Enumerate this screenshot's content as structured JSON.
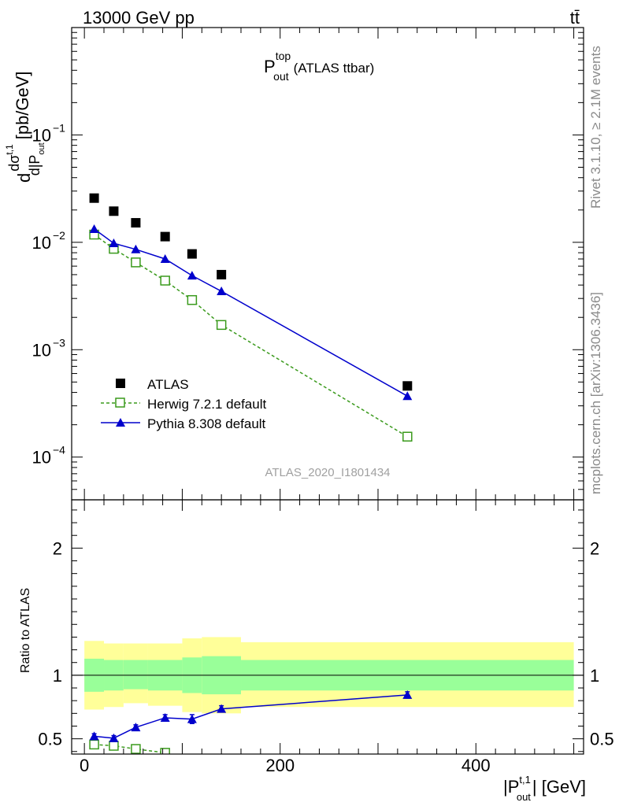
{
  "header": {
    "left": "13000 GeV pp",
    "right": "tt̄"
  },
  "side_text": {
    "rivet": "Rivet 3.1.10, ≥ 2.1M events",
    "mcplots": "mcplots.cern.ch [arXiv:1306.3436]"
  },
  "chart_data": [
    {
      "type": "scatter",
      "panel": "main",
      "title_main": "P",
      "title_sup": "top",
      "title_sub": "out",
      "title_rest": "(ATLAS ttbar)",
      "ylabel": "d dσ^{t,1}_{ttd} / d|P^{t,1}_{out}| [pb/GeV]",
      "ylabel_parts": {
        "d": "d",
        "dsigma": "dσ",
        "sup": "t,1",
        "sub": "out",
        "denom": "d|P",
        "unit": "[pb/GeV]"
      },
      "yscale": "log",
      "ylim": [
        4e-05,
        1.0
      ],
      "xlim": [
        -13,
        510
      ],
      "yticks": [
        {
          "value": 0.0001,
          "base": "10",
          "exp": "−4"
        },
        {
          "value": 0.001,
          "base": "10",
          "exp": "−3"
        },
        {
          "value": 0.01,
          "base": "10",
          "exp": "−2"
        },
        {
          "value": 0.1,
          "base": "10",
          "exp": "−1"
        }
      ],
      "watermark": "ATLAS_2020_I1801434",
      "legend_placement": "bottom-left",
      "series": [
        {
          "name": "ATLAS",
          "style": "data",
          "color": "#000000",
          "x": [
            10,
            30,
            52.5,
            82.5,
            110,
            140,
            330
          ],
          "y": [
            0.0258,
            0.0195,
            0.0152,
            0.0113,
            0.0078,
            0.005,
            0.00046
          ]
        },
        {
          "name": "Herwig 7.2.1 default",
          "style": "dashed-open-square",
          "color": "#3a9a1c",
          "x": [
            10,
            30,
            52.5,
            82.5,
            110,
            140,
            330
          ],
          "y": [
            0.0118,
            0.0087,
            0.0065,
            0.0044,
            0.0029,
            0.0017,
            0.000155
          ]
        },
        {
          "name": "Pythia 8.308 default",
          "style": "solid-triangle",
          "color": "#0000cc",
          "x": [
            10,
            30,
            52.5,
            82.5,
            110,
            140,
            330
          ],
          "y": [
            0.0133,
            0.0098,
            0.0086,
            0.007,
            0.0049,
            0.0035,
            0.00037
          ]
        }
      ]
    },
    {
      "type": "line",
      "panel": "ratio",
      "ylabel": "Ratio to ATLAS",
      "ylim": [
        0.38,
        2.38
      ],
      "xlim": [
        -13,
        510
      ],
      "yticks": [
        {
          "value": 0.5,
          "label": "0.5"
        },
        {
          "value": 1,
          "label": "1"
        },
        {
          "value": 2,
          "label": "2"
        }
      ],
      "xticks": [
        {
          "value": 0,
          "label": "0"
        },
        {
          "value": 200,
          "label": "200"
        },
        {
          "value": 400,
          "label": "400"
        }
      ],
      "xlabel": "|P^{t,1}_{out}| [GeV]",
      "xlabel_parts": {
        "pre": "|P",
        "sup": "t,1",
        "sub": "out",
        "post": "| [GeV]"
      },
      "bands": {
        "bin_edges": [
          0,
          20,
          40,
          65,
          100,
          120,
          160,
          500
        ],
        "inner_low": [
          0.87,
          0.88,
          0.89,
          0.88,
          0.86,
          0.85,
          0.88
        ],
        "inner_high": [
          1.13,
          1.12,
          1.12,
          1.12,
          1.14,
          1.15,
          1.12
        ],
        "outer_low": [
          0.73,
          0.75,
          0.78,
          0.76,
          0.71,
          0.7,
          0.75
        ],
        "outer_high": [
          1.27,
          1.25,
          1.25,
          1.25,
          1.29,
          1.3,
          1.26
        ],
        "inner_color": "#99ff99",
        "outer_color": "#ffff99"
      },
      "series": [
        {
          "name": "Herwig 7.2.1 default",
          "style": "dashed-open-square",
          "color": "#3a9a1c",
          "x": [
            10,
            30,
            52.5,
            82.5
          ],
          "y": [
            0.455,
            0.445,
            0.42,
            0.39
          ]
        },
        {
          "name": "Pythia 8.308 default",
          "style": "solid-triangle",
          "color": "#0000cc",
          "x": [
            10,
            30,
            52.5,
            82.5,
            110,
            140,
            330
          ],
          "y": [
            0.52,
            0.505,
            0.59,
            0.665,
            0.655,
            0.735,
            0.845
          ],
          "err": [
            0.02,
            0.02,
            0.02,
            0.025,
            0.035,
            0.025,
            0.025
          ]
        }
      ]
    }
  ]
}
